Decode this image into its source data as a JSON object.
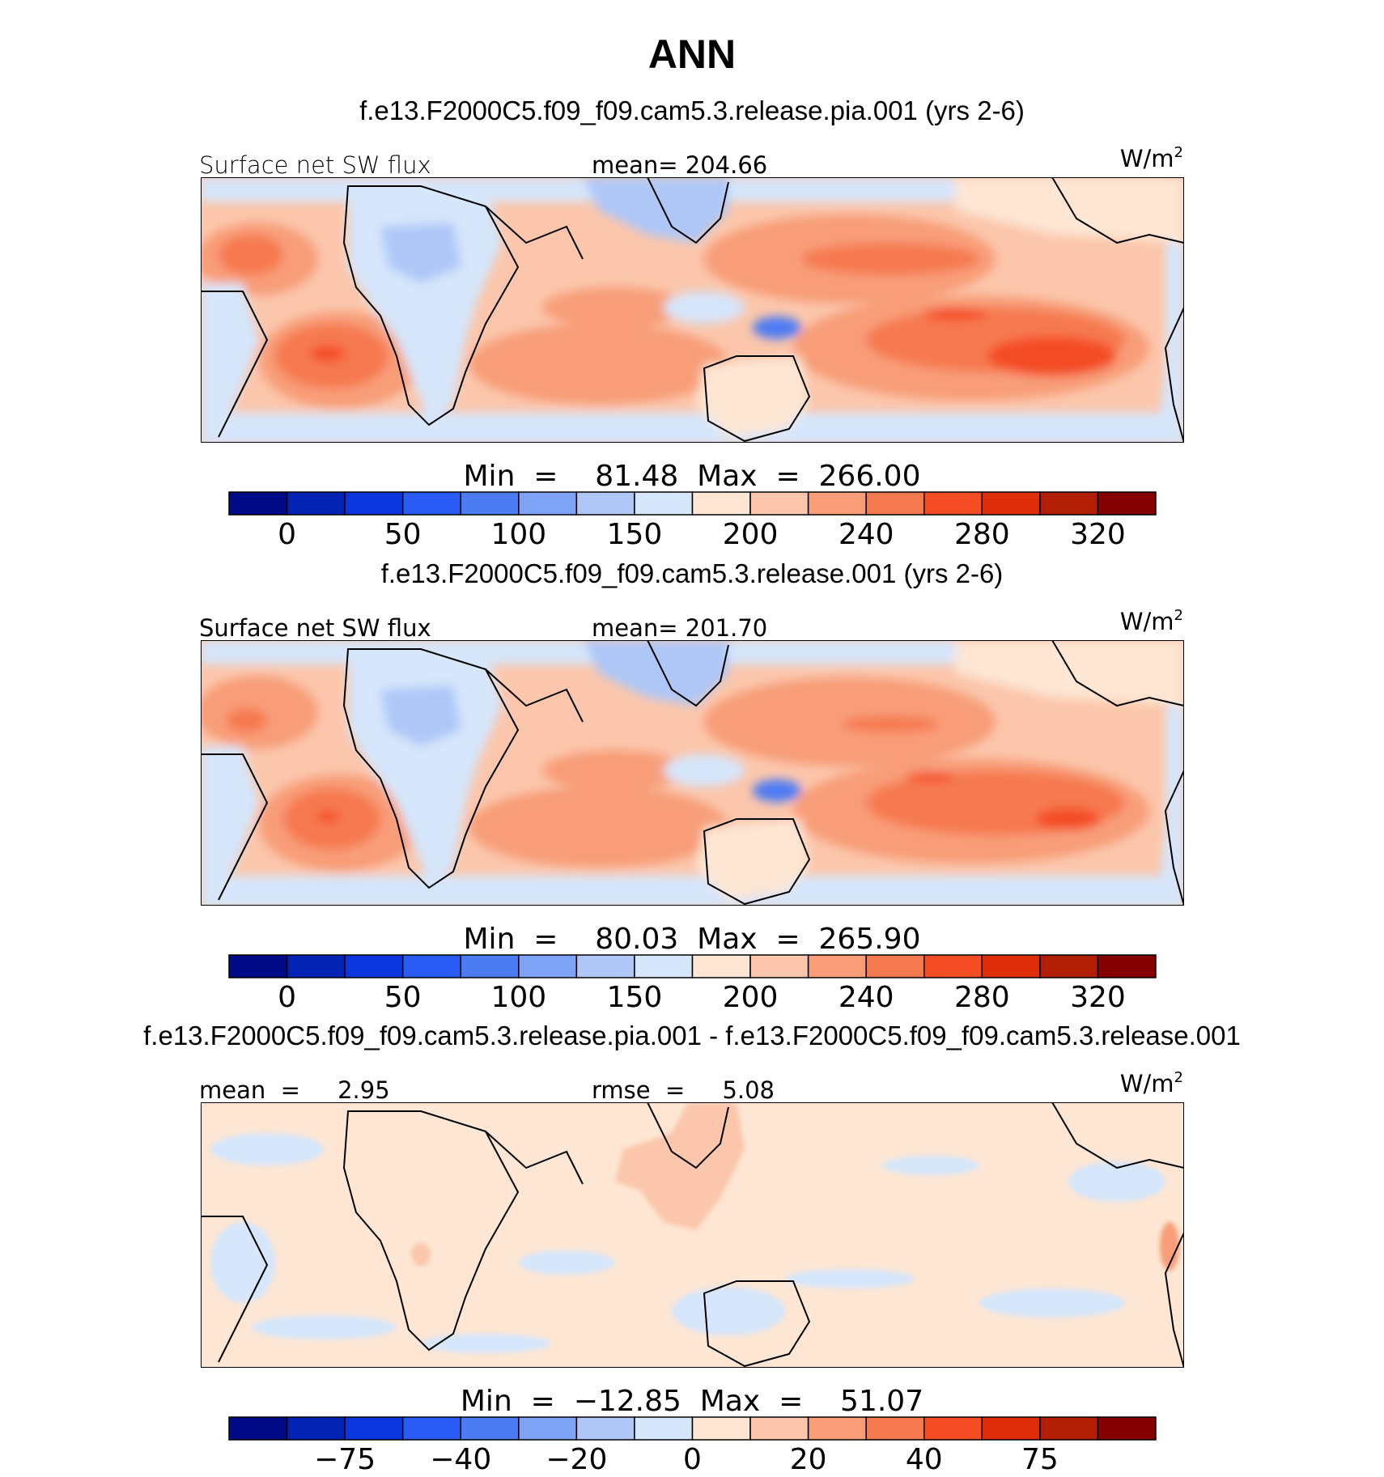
{
  "title": "ANN",
  "colors": {
    "abs": [
      "#000a85",
      "#0222b3",
      "#0b36de",
      "#2a5cf5",
      "#4d7bf3",
      "#7ea3f6",
      "#aec7f7",
      "#d6e6fb",
      "#fde6d3",
      "#fbc6ab",
      "#f89d78",
      "#f6794f",
      "#f44d26",
      "#df2f0a",
      "#b21e04",
      "#850000"
    ],
    "diff": [
      "#000a85",
      "#0222b3",
      "#0b36de",
      "#2a5cf5",
      "#4d7bf3",
      "#7ea3f6",
      "#aec7f7",
      "#d6e6fb",
      "#fde6d3",
      "#fbc6ab",
      "#f89d78",
      "#f6794f",
      "#f44d26",
      "#df2f0a",
      "#b21e04",
      "#850000"
    ]
  },
  "panels": [
    {
      "subtitle": "f.e13.F2000C5.f09_f09.cam5.3.release.pia.001 (yrs 2-6)",
      "left_label": "Surface  net  SW  flux",
      "center_label": "mean=  204.66",
      "units_base": "W/m",
      "units_sup": "2",
      "stats": "Min  =    81.48  Max  =  266.00",
      "colorbar_ticks": [
        "0",
        "50",
        "100",
        "150",
        "200",
        "240",
        "280",
        "320"
      ],
      "palette": "abs"
    },
    {
      "subtitle": "f.e13.F2000C5.f09_f09.cam5.3.release.001 (yrs 2-6)",
      "left_label": "Surface  net  SW  flux",
      "center_label": "mean=  201.70",
      "units_base": "W/m",
      "units_sup": "2",
      "stats": "Min  =    80.03  Max  =  265.90",
      "colorbar_ticks": [
        "0",
        "50",
        "100",
        "150",
        "200",
        "240",
        "280",
        "320"
      ],
      "palette": "abs"
    },
    {
      "subtitle": "f.e13.F2000C5.f09_f09.cam5.3.release.pia.001 - f.e13.F2000C5.f09_f09.cam5.3.release.001",
      "left_label": "mean  =     2.95",
      "center_label": "rmse  =     5.08",
      "units_base": "W/m",
      "units_sup": "2",
      "stats": "Min  =  −12.85  Max  =    51.07",
      "colorbar_ticks": [
        "−75",
        "−40",
        "−20",
        "0",
        "20",
        "40",
        "75"
      ],
      "palette": "diff"
    }
  ]
}
